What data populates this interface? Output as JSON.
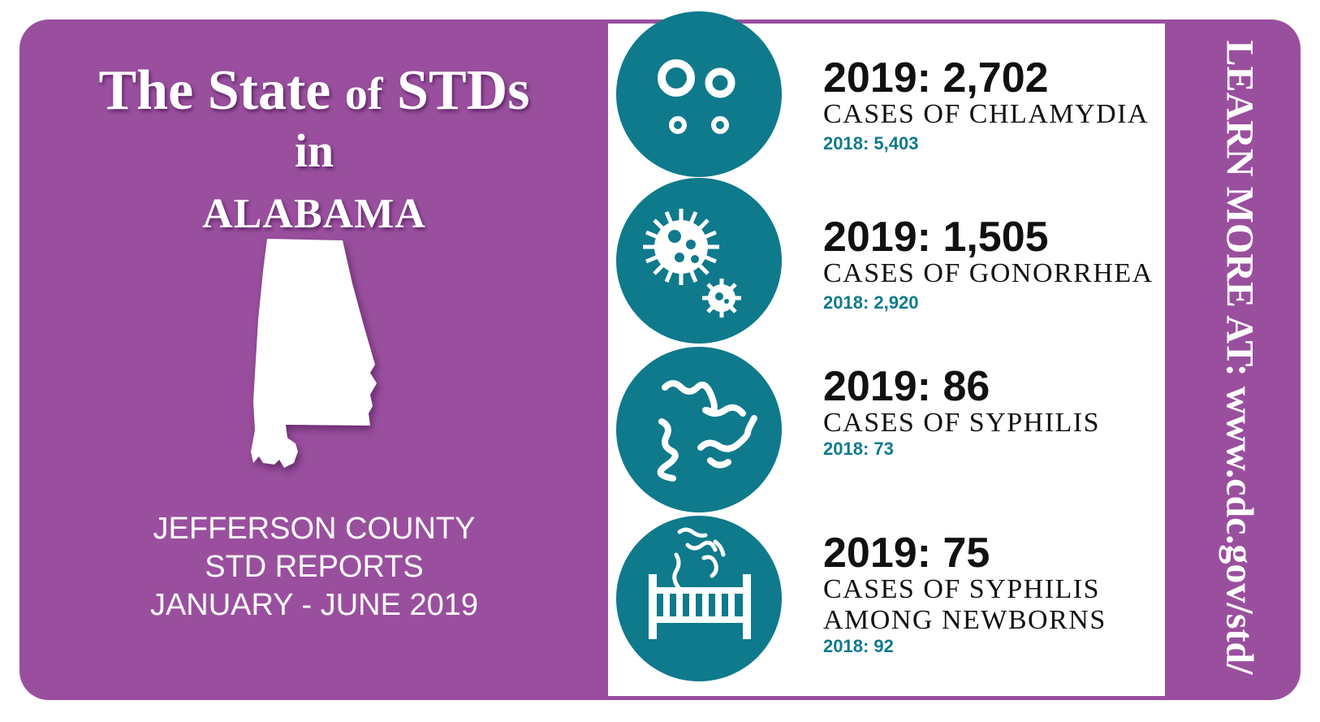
{
  "header": {
    "title_the": "The",
    "title_state": "State",
    "title_of": "of",
    "title_stds": "STDs",
    "title_in": "in",
    "state_name": "ALABAMA"
  },
  "county": {
    "line1": "JEFFERSON COUNTY",
    "line2": "STD REPORTS",
    "line3": "JANUARY - JUNE 2019"
  },
  "stats": [
    {
      "icon": "chlamydia-icon",
      "headline": "2019: 2,702",
      "cases": [
        "CASES OF CHLAMYDIA"
      ],
      "prev": "2018: 5,403"
    },
    {
      "icon": "gonorrhea-icon",
      "headline": "2019: 1,505",
      "cases": [
        "CASES OF GONORRHEA"
      ],
      "prev": "2018: 2,920"
    },
    {
      "icon": "syphilis-icon",
      "headline": "2019: 86",
      "cases": [
        "CASES OF SYPHILIS"
      ],
      "prev": "2018: 73"
    },
    {
      "icon": "crib-syphilis-icon",
      "headline": "2019: 75",
      "cases": [
        "CASES OF SYPHILIS",
        "AMONG NEWBORNS"
      ],
      "prev": "2018: 92"
    }
  ],
  "learn_more": "LEARN MORE AT: www.cdc.gov/std/",
  "colors": {
    "purple": "#9a4f9e",
    "teal": "#0e7a8c",
    "white": "#ffffff"
  }
}
